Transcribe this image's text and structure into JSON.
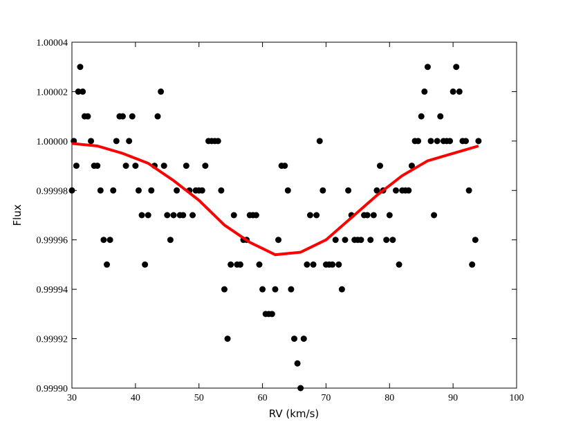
{
  "chart_data": {
    "type": "scatter",
    "x_label": "RV (km/s)",
    "y_label": "Flux",
    "xlim": [
      30,
      100
    ],
    "xticks": [
      30,
      40,
      50,
      60,
      70,
      80,
      90,
      100
    ],
    "ylim": [
      0.9999,
      1.00004
    ],
    "yticks": [
      {
        "value": 0.9999,
        "label": "0.99990"
      },
      0.99992,
      0.99994,
      0.99996,
      0.99998,
      {
        "value": 1,
        "label": "1.00000"
      },
      1.00002,
      1.00004
    ],
    "series": [
      {
        "type": "scatter",
        "color": "#000000",
        "x": [
          30,
          30.3,
          30.7,
          31,
          31.3,
          31.7,
          32,
          32.5,
          33,
          33.5,
          34,
          34.5,
          35,
          35.5,
          36,
          36.5,
          37,
          37.5,
          38,
          38.5,
          39,
          39.5,
          40,
          40.5,
          41,
          41.5,
          42,
          42.5,
          43,
          43.5,
          44,
          44.5,
          45,
          45.5,
          46,
          46.5,
          47,
          47.5,
          48,
          48.5,
          49,
          49.5,
          50,
          50.5,
          51,
          51.5,
          52,
          52.5,
          53,
          53.5,
          54,
          54.5,
          55,
          55.5,
          56,
          56.5,
          57,
          57.5,
          58,
          58.5,
          59,
          59.5,
          60,
          60.5,
          61,
          61.5,
          62,
          62.5,
          63,
          63.5,
          64,
          64.5,
          65,
          65.5,
          66,
          66.5,
          67,
          67.5,
          68,
          68.5,
          69,
          69.5,
          70,
          70.5,
          71,
          71.5,
          72,
          72.5,
          73,
          73.5,
          74,
          74.5,
          75,
          75.5,
          76,
          76.5,
          77,
          77.5,
          78,
          78.5,
          79,
          79.5,
          80,
          80.5,
          81,
          81.5,
          82,
          82.5,
          83,
          83.5,
          84,
          84.5,
          85,
          85.5,
          86,
          86.5,
          87,
          87.5,
          88,
          88.5,
          89,
          89.5,
          90,
          90.5,
          91,
          91.5,
          92,
          92.5,
          93,
          93.5,
          94
        ],
        "values": [
          0.99998,
          1.0,
          0.99999,
          1.00002,
          1.00003,
          1.00002,
          1.00001,
          1.00001,
          1.0,
          0.99999,
          0.99999,
          0.99998,
          0.99996,
          0.99995,
          0.99996,
          0.99998,
          1.0,
          1.00001,
          1.00001,
          0.99999,
          1.0,
          1.00001,
          0.99999,
          0.99998,
          0.99997,
          0.99995,
          0.99997,
          0.99998,
          0.99999,
          1.00001,
          1.00002,
          0.99999,
          0.99997,
          0.99996,
          0.99997,
          0.99998,
          0.99997,
          0.99997,
          0.99999,
          0.99998,
          0.99997,
          0.99998,
          0.99998,
          0.99998,
          0.99999,
          1.0,
          1.0,
          1.0,
          1.0,
          0.99998,
          0.99994,
          0.99992,
          0.99995,
          0.99997,
          0.99995,
          0.99995,
          0.99996,
          0.99996,
          0.99997,
          0.99997,
          0.99997,
          0.99995,
          0.99994,
          0.99993,
          0.99993,
          0.99993,
          0.99994,
          0.99996,
          0.99999,
          0.99999,
          0.99998,
          0.99994,
          0.99992,
          0.99991,
          0.9999,
          0.99992,
          0.99995,
          0.99997,
          0.99995,
          0.99997,
          1.0,
          0.99998,
          0.99995,
          0.99995,
          0.99995,
          0.99996,
          0.99995,
          0.99994,
          0.99996,
          0.99998,
          0.99997,
          0.99996,
          0.99996,
          0.99996,
          0.99997,
          0.99997,
          0.99996,
          0.99997,
          0.99998,
          0.99999,
          0.99998,
          0.99996,
          0.99997,
          0.99996,
          0.99998,
          0.99995,
          0.99998,
          0.99998,
          0.99998,
          0.99999,
          1.0,
          1.0,
          1.00001,
          1.00002,
          1.00003,
          1.0,
          0.99997,
          1.0,
          1.00001,
          1.0,
          1.0,
          1.0,
          1.00002,
          1.00003,
          1.00002,
          1.0,
          1.0,
          0.99998,
          0.99995,
          0.99996,
          1.0
        ]
      },
      {
        "type": "line",
        "color": "#ff0000",
        "x": [
          30,
          34,
          38,
          42,
          46,
          50,
          54,
          58,
          62,
          66,
          70,
          74,
          78,
          82,
          86,
          90,
          94
        ],
        "values": [
          0.999999,
          0.999998,
          0.999995,
          0.999991,
          0.999984,
          0.999976,
          0.999966,
          0.999959,
          0.999954,
          0.999955,
          0.99996,
          0.999969,
          0.999978,
          0.999986,
          0.999992,
          0.999995,
          0.999998
        ]
      }
    ]
  }
}
